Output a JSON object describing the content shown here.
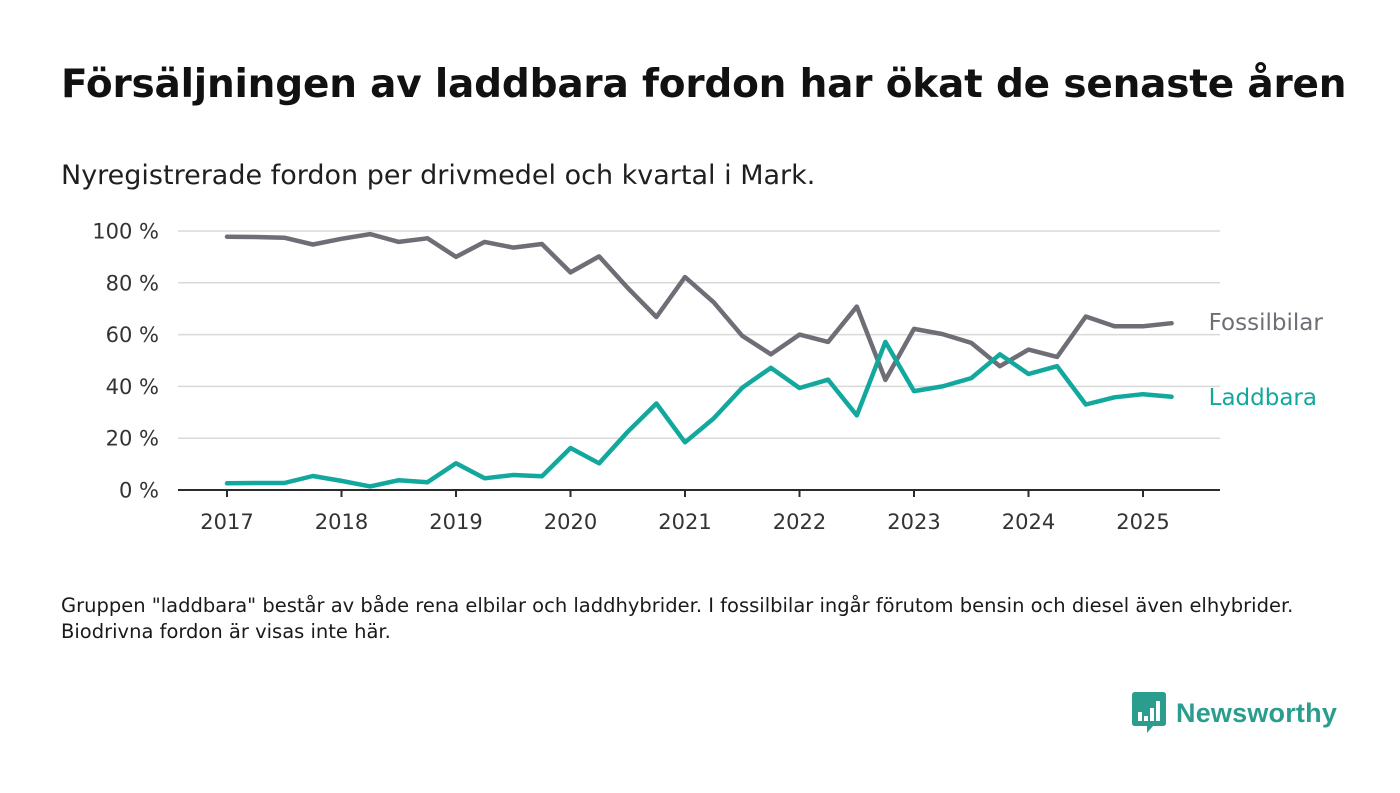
{
  "header": {
    "title": "Försäljningen av laddbara fordon har ökat de senaste åren",
    "subtitle": "Nyregistrerade fordon per drivmedel och kvartal i Mark."
  },
  "footer": {
    "note": "Gruppen \"laddbara\" består av både rena elbilar och laddhybrider. I fossilbilar ingår förutom bensin och diesel även elhybrider. Biodrivna fordon är visas inte här.",
    "brand": "Newsworthy",
    "brand_color": "#2a9d8f",
    "brand_icon": "bar-chart-speech-bubble-icon"
  },
  "chart_data": {
    "type": "line",
    "ylim": [
      0,
      100
    ],
    "y_ticks": [
      0,
      20,
      40,
      60,
      80,
      100
    ],
    "y_tick_labels": [
      "0 %",
      "20 %",
      "40 %",
      "60 %",
      "80 %",
      "100 %"
    ],
    "x_tick_years": [
      2017,
      2018,
      2019,
      2020,
      2021,
      2022,
      2023,
      2024,
      2025
    ],
    "x_tick_labels": [
      "2017",
      "2018",
      "2019",
      "2020",
      "2021",
      "2022",
      "2023",
      "2024",
      "2025"
    ],
    "x_quarters": [
      "2017Q1",
      "2017Q2",
      "2017Q3",
      "2017Q4",
      "2018Q1",
      "2018Q2",
      "2018Q3",
      "2018Q4",
      "2019Q1",
      "2019Q2",
      "2019Q3",
      "2019Q4",
      "2020Q1",
      "2020Q2",
      "2020Q3",
      "2020Q4",
      "2021Q1",
      "2021Q2",
      "2021Q3",
      "2021Q4",
      "2022Q1",
      "2022Q2",
      "2022Q3",
      "2022Q4",
      "2023Q1",
      "2023Q2",
      "2023Q3",
      "2023Q4",
      "2024Q1",
      "2024Q2",
      "2024Q3",
      "2024Q4",
      "2025Q1",
      "2025Q2"
    ],
    "grid": true,
    "legend": "inline labels at line ends (right)",
    "series": [
      {
        "name": "Fossilbilar",
        "color": "#6e6e76",
        "values": [
          97.8,
          97.7,
          97.4,
          94.8,
          97.0,
          98.8,
          95.8,
          97.2,
          90.0,
          95.8,
          93.6,
          95.0,
          84.0,
          90.2,
          78.0,
          66.8,
          82.2,
          72.5,
          59.5,
          52.4,
          60.0,
          57.2,
          70.8,
          42.5,
          62.2,
          60.2,
          56.8,
          47.8,
          54.2,
          51.4,
          67.0,
          63.2,
          63.2,
          64.4
        ]
      },
      {
        "name": "Laddbara",
        "color": "#13a89e",
        "values": [
          2.6,
          2.7,
          2.7,
          5.4,
          3.5,
          1.4,
          3.8,
          3.0,
          10.3,
          4.5,
          5.8,
          5.3,
          16.2,
          10.3,
          22.5,
          33.4,
          18.4,
          27.6,
          39.5,
          47.2,
          39.4,
          42.6,
          28.8,
          57.2,
          38.2,
          40.0,
          43.2,
          52.4,
          44.8,
          47.8,
          33.0,
          35.8,
          37.0,
          36.0
        ]
      }
    ]
  }
}
